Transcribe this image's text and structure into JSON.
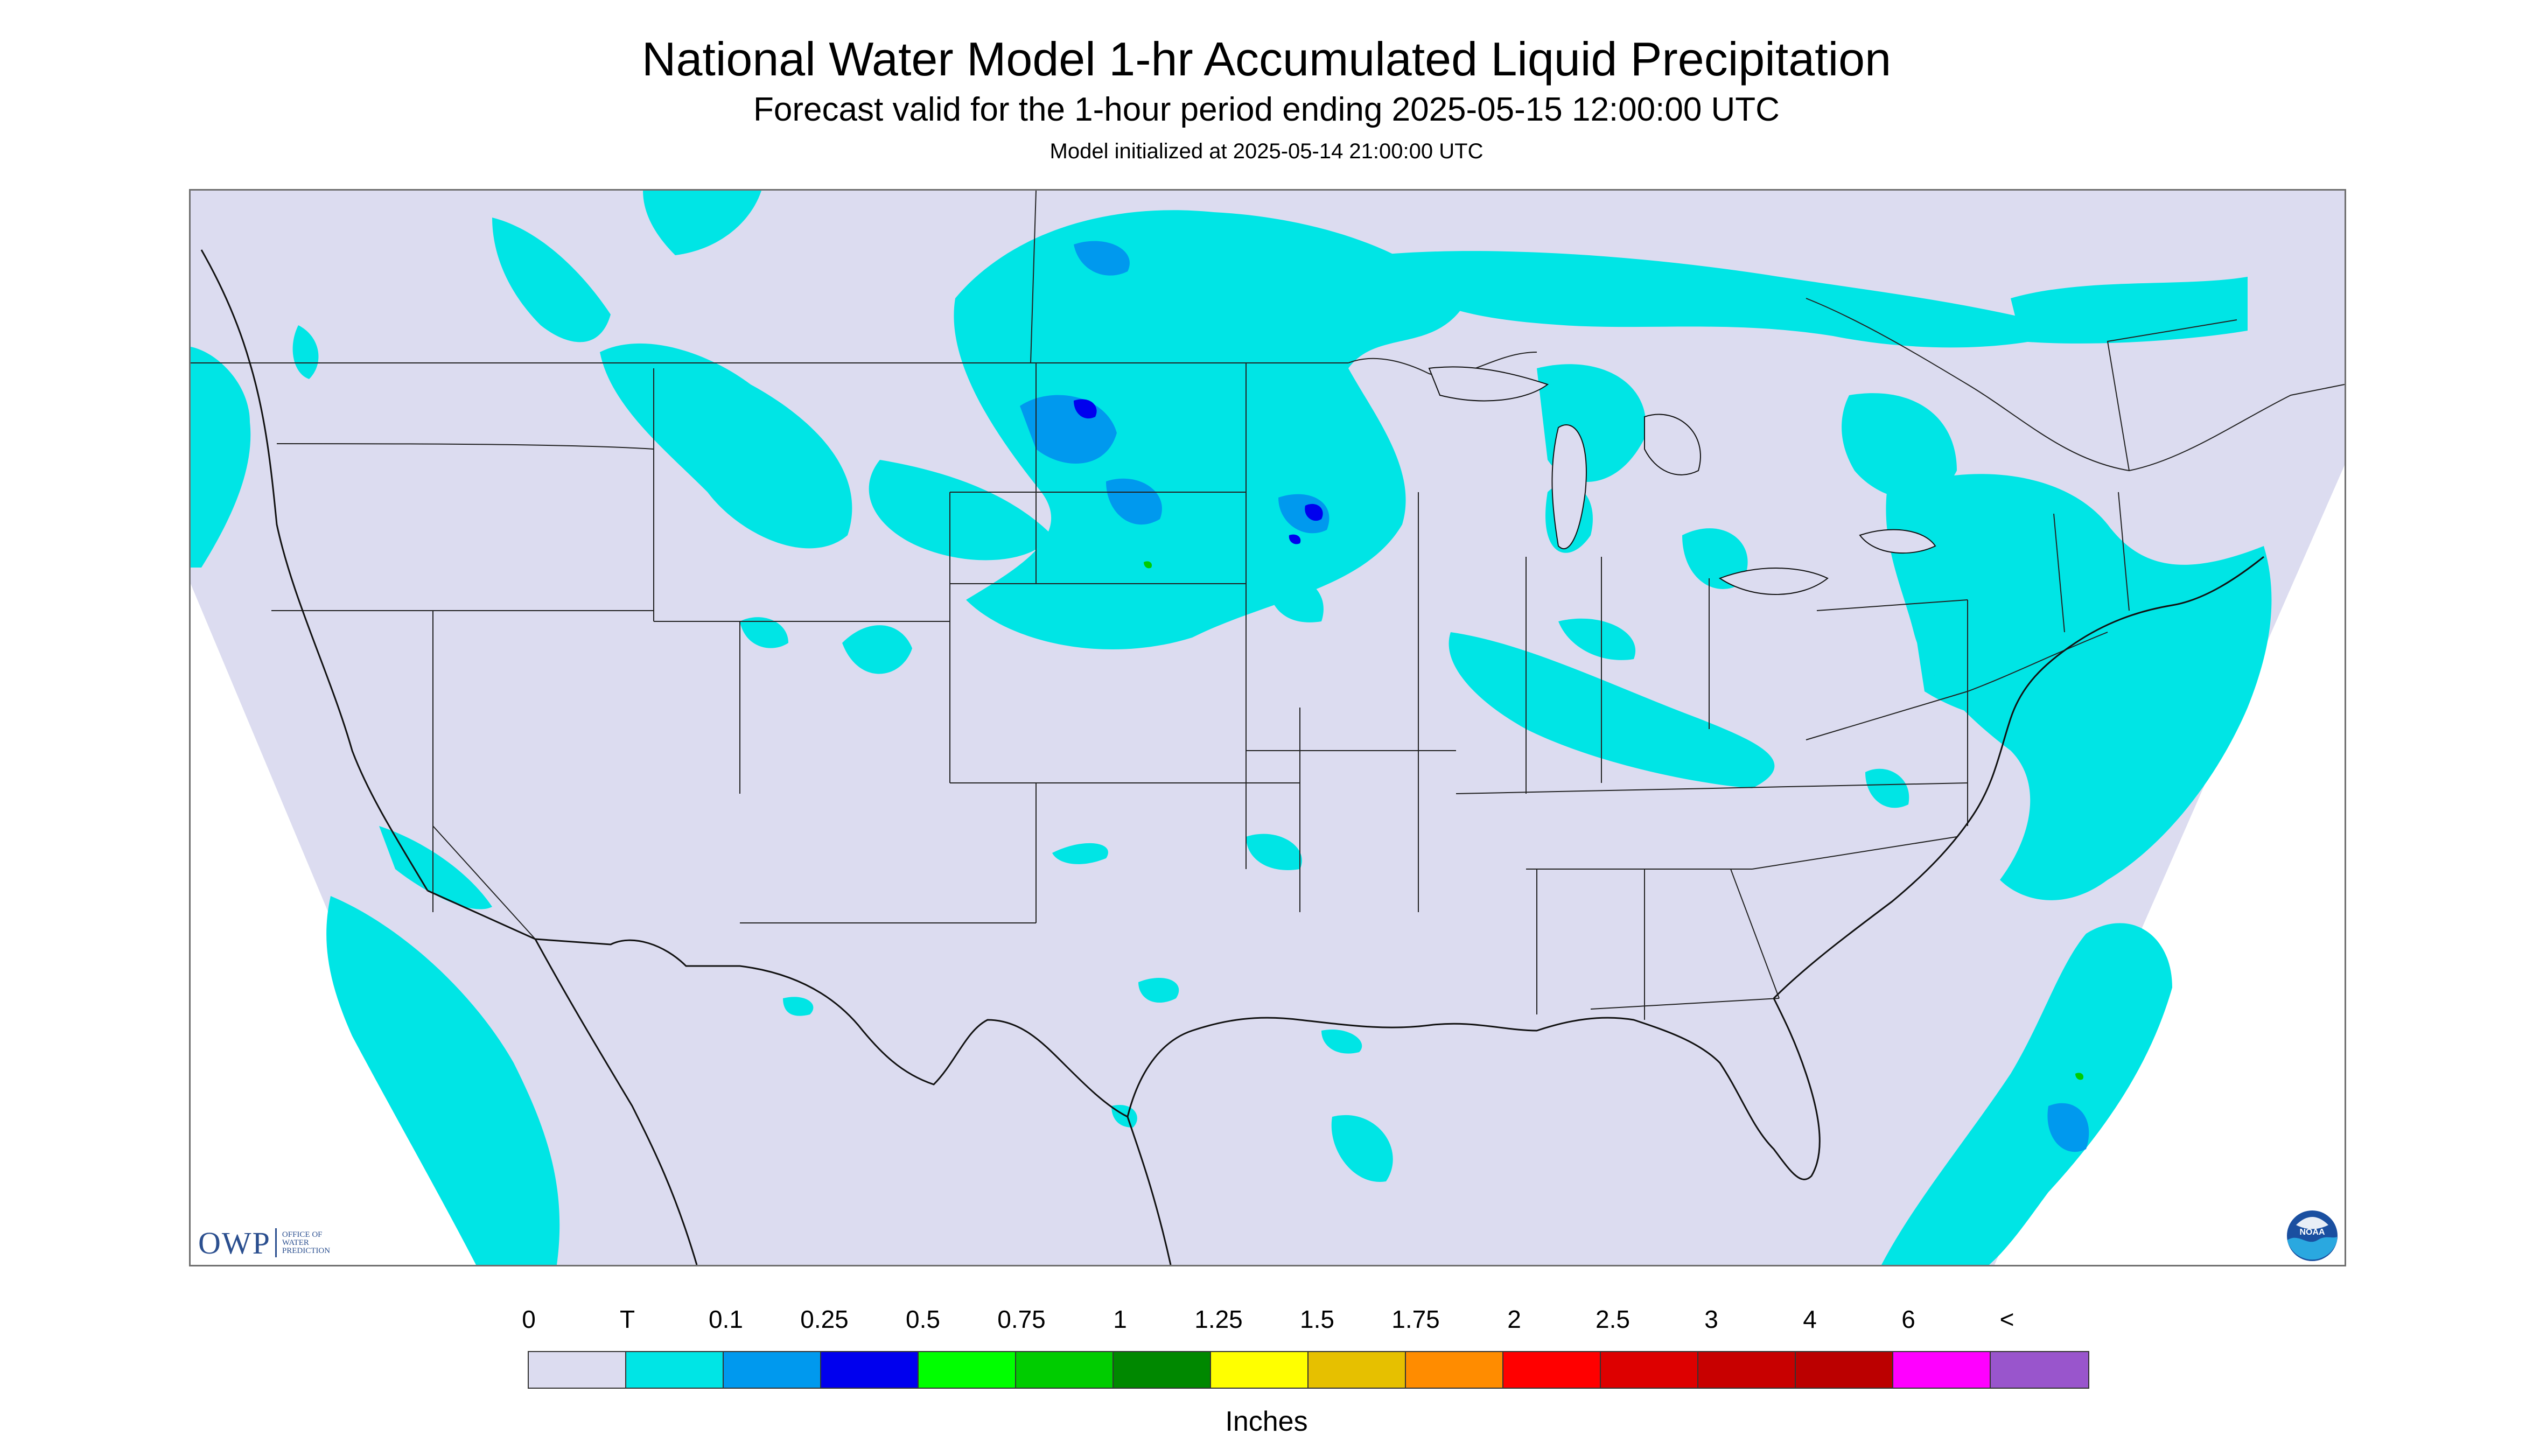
{
  "title": "National Water Model 1-hr Accumulated Liquid Precipitation",
  "subtitle": "Forecast valid for the 1-hour period ending 2025-05-15 12:00:00 UTC",
  "init_text": "Model initialized at 2025-05-14 21:00:00 UTC",
  "owp_logo": {
    "letters": "OWP",
    "line1": "OFFICE OF",
    "line2": "WATER",
    "line3": "PREDICTION"
  },
  "noaa_logo": {
    "text": "NOAA"
  },
  "legend": {
    "units": "Inches",
    "labels": [
      "0",
      "T",
      "0.1",
      "0.25",
      "0.5",
      "0.75",
      "1",
      "1.25",
      "1.5",
      "1.75",
      "2",
      "2.5",
      "3",
      "4",
      "6",
      "<"
    ],
    "colors": [
      "#dcdcf0",
      "#00e5e5",
      "#0099ee",
      "#0000ee",
      "#00ff00",
      "#00cc00",
      "#008800",
      "#ffff00",
      "#e6c000",
      "#ff8c00",
      "#ff0000",
      "#dd0000",
      "#c80000",
      "#bb0000",
      "#ff00ff",
      "#9955cc"
    ]
  },
  "map_colors": {
    "background": "#dcdcf0",
    "trace": "#00e5e5",
    "light": "#0099ee",
    "moderate": "#0000ee",
    "heavy": "#00ff00",
    "boundaries": "#222222"
  }
}
